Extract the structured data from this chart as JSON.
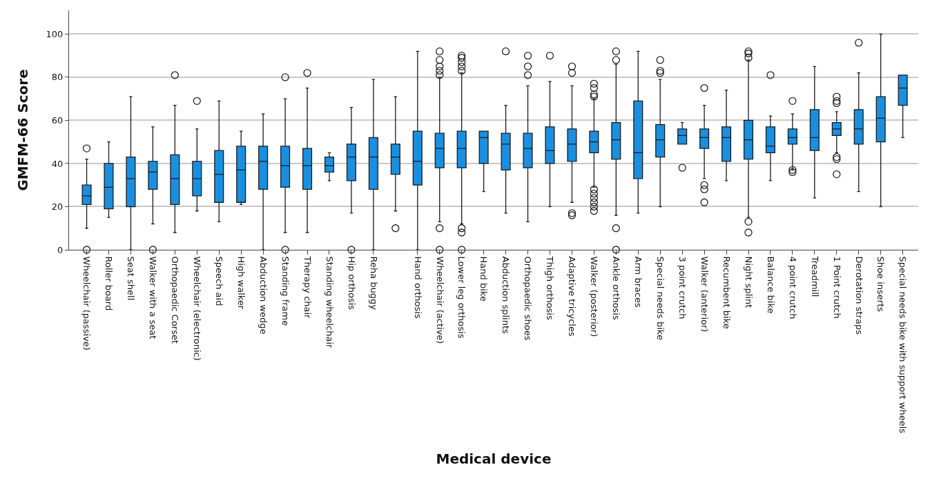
{
  "chart_data": {
    "type": "box",
    "xlabel": "Medical device",
    "ylabel": "GMFM-66 Score",
    "categories": [
      "Wheelchair (passive)",
      "Roller board",
      "Seat shell",
      "Walker with a seat",
      "Orthopaedic Corset",
      "Wheelchair (electronic)",
      "Speech aid",
      "High walker",
      "Abduction wedge",
      "Standing frame",
      "Therapy chair",
      "Standing wheelchair",
      "Hip orthosis",
      "Reha buggy",
      null,
      "Hand orthosis",
      "Wheelchair (active)",
      "Lower leg orthosis",
      "Hand bike",
      "Abduction splints",
      "Orthopaedic shoes",
      "Thigh orthosis",
      "Adaptive tricycles",
      "Walker (posterior)",
      "Ankle orthosis",
      "Arm braces",
      "Special needs bike",
      "3 point crutch",
      "Walker (anterior)",
      "Recumbent bike",
      "Night splint",
      "Balance bike",
      "4 point crutch",
      "Treadmill",
      "1 Point crutch",
      "Derotation straps",
      "Shoe inserts",
      "Special needs bike with support wheels"
    ],
    "color": "#1a8fe0",
    "boxes": [
      {
        "low": 10,
        "q1": 21,
        "median": 25,
        "q3": 30,
        "high": 42,
        "outliers": [
          47,
          0
        ]
      },
      {
        "low": 15,
        "q1": 19,
        "median": 29,
        "q3": 40,
        "high": 50
      },
      {
        "low": 0,
        "q1": 20,
        "median": 33,
        "q3": 43,
        "high": 71
      },
      {
        "low": 12,
        "q1": 28,
        "median": 36,
        "q3": 41,
        "high": 57,
        "outliers": [
          0
        ]
      },
      {
        "low": 8,
        "q1": 21,
        "median": 33,
        "q3": 44,
        "high": 67,
        "outliers": [
          81
        ]
      },
      {
        "low": 18,
        "q1": 25,
        "median": 33,
        "q3": 41,
        "high": 56,
        "outliers": [
          69
        ]
      },
      {
        "low": 13,
        "q1": 22,
        "median": 35,
        "q3": 46,
        "high": 69
      },
      {
        "low": 21,
        "q1": 22,
        "median": 37,
        "q3": 48,
        "high": 55
      },
      {
        "low": 0,
        "q1": 28,
        "median": 41,
        "q3": 48,
        "high": 63
      },
      {
        "low": 8,
        "q1": 29,
        "median": 39,
        "q3": 48,
        "high": 70,
        "outliers": [
          80,
          0
        ]
      },
      {
        "low": 8,
        "q1": 28,
        "median": 39,
        "q3": 47,
        "high": 75,
        "outliers": [
          82
        ]
      },
      {
        "low": 32,
        "q1": 36,
        "median": 39,
        "q3": 43,
        "high": 45
      },
      {
        "low": 17,
        "q1": 32,
        "median": 43,
        "q3": 49,
        "high": 66,
        "outliers": [
          0
        ]
      },
      {
        "low": 0,
        "q1": 28,
        "median": 43,
        "q3": 52,
        "high": 79
      },
      {
        "low": 18,
        "q1": 35,
        "median": 43,
        "q3": 49,
        "high": 71,
        "outliers": [
          10
        ]
      },
      {
        "low": 0,
        "q1": 30,
        "median": 41,
        "q3": 55,
        "high": 92
      },
      {
        "low": 13,
        "q1": 38,
        "median": 47,
        "q3": 54,
        "high": 80,
        "outliers": [
          92,
          88,
          85,
          83,
          81,
          10,
          0
        ]
      },
      {
        "low": 12,
        "q1": 38,
        "median": 47,
        "q3": 55,
        "high": 82,
        "outliers": [
          90,
          89,
          87,
          85,
          83,
          10,
          8,
          0
        ]
      },
      {
        "low": 27,
        "q1": 40,
        "median": 52,
        "q3": 55,
        "high": 55
      },
      {
        "low": 17,
        "q1": 37,
        "median": 49,
        "q3": 54,
        "high": 67,
        "outliers": [
          92
        ]
      },
      {
        "low": 13,
        "q1": 38,
        "median": 47,
        "q3": 54,
        "high": 76,
        "outliers": [
          90,
          85,
          81
        ]
      },
      {
        "low": 20,
        "q1": 40,
        "median": 46,
        "q3": 57,
        "high": 78,
        "outliers": [
          90
        ]
      },
      {
        "low": 22,
        "q1": 41,
        "median": 49,
        "q3": 56,
        "high": 76,
        "outliers": [
          85,
          82,
          17,
          16
        ]
      },
      {
        "low": 29,
        "q1": 45,
        "median": 50,
        "q3": 55,
        "high": 70,
        "outliers": [
          77,
          75,
          72,
          71,
          28,
          26,
          24,
          22,
          20,
          18
        ]
      },
      {
        "low": 16,
        "q1": 42,
        "median": 51,
        "q3": 59,
        "high": 86,
        "outliers": [
          92,
          88,
          10,
          0
        ]
      },
      {
        "low": 17,
        "q1": 33,
        "median": 45,
        "q3": 69,
        "high": 92
      },
      {
        "low": 20,
        "q1": 43,
        "median": 51,
        "q3": 58,
        "high": 79,
        "outliers": [
          88,
          83,
          82
        ]
      },
      {
        "low": 49,
        "q1": 49,
        "median": 53,
        "q3": 56,
        "high": 59,
        "outliers": [
          38
        ]
      },
      {
        "low": 33,
        "q1": 47,
        "median": 52,
        "q3": 56,
        "high": 67,
        "outliers": [
          75,
          30,
          28,
          22
        ]
      },
      {
        "low": 32,
        "q1": 41,
        "median": 52,
        "q3": 57,
        "high": 74
      },
      {
        "low": 15,
        "q1": 42,
        "median": 51,
        "q3": 60,
        "high": 88,
        "outliers": [
          92,
          91,
          89,
          13,
          8
        ]
      },
      {
        "low": 32,
        "q1": 45,
        "median": 48,
        "q3": 57,
        "high": 62,
        "outliers": [
          81
        ]
      },
      {
        "low": 37,
        "q1": 49,
        "median": 52,
        "q3": 56,
        "high": 63,
        "outliers": [
          69,
          37,
          36
        ]
      },
      {
        "low": 24,
        "q1": 46,
        "median": 52,
        "q3": 65,
        "high": 85
      },
      {
        "low": 45,
        "q1": 53,
        "median": 56,
        "q3": 59,
        "high": 64,
        "outliers": [
          71,
          69,
          68,
          43,
          42,
          35
        ]
      },
      {
        "low": 27,
        "q1": 49,
        "median": 56,
        "q3": 65,
        "high": 82,
        "outliers": [
          96
        ]
      },
      {
        "low": 20,
        "q1": 50,
        "median": 61,
        "q3": 71,
        "high": 100
      },
      {
        "low": 52,
        "q1": 67,
        "median": 75,
        "q3": 81,
        "high": 81
      }
    ],
    "ylim": [
      0,
      111
    ],
    "yticks": [
      0,
      20,
      40,
      60,
      80,
      100
    ],
    "grid": "y"
  }
}
